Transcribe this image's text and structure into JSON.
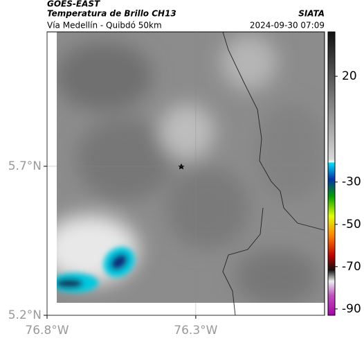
{
  "header": {
    "satellite": "GOES-EAST",
    "product": "Temperatura de Brillo CH13",
    "source": "SIATA",
    "subtitle": "Vía Medellín - Quibdó 50km",
    "timestamp": "2024-09-30 07:09"
  },
  "map": {
    "xlim": [
      -76.8,
      -75.867
    ],
    "ylim": [
      5.2,
      6.151
    ],
    "xticks": [
      {
        "value": -76.8,
        "label": "76.8°W"
      },
      {
        "value": -76.3,
        "label": "76.3°W"
      }
    ],
    "yticks": [
      {
        "value": 5.2,
        "label": "5.2°N"
      },
      {
        "value": 5.7,
        "label": "5.7°N"
      }
    ],
    "grid": true
  },
  "colorbar": {
    "lim": [
      -93,
      41
    ],
    "ticks": [
      20,
      -30,
      -50,
      -70,
      -90
    ]
  }
}
